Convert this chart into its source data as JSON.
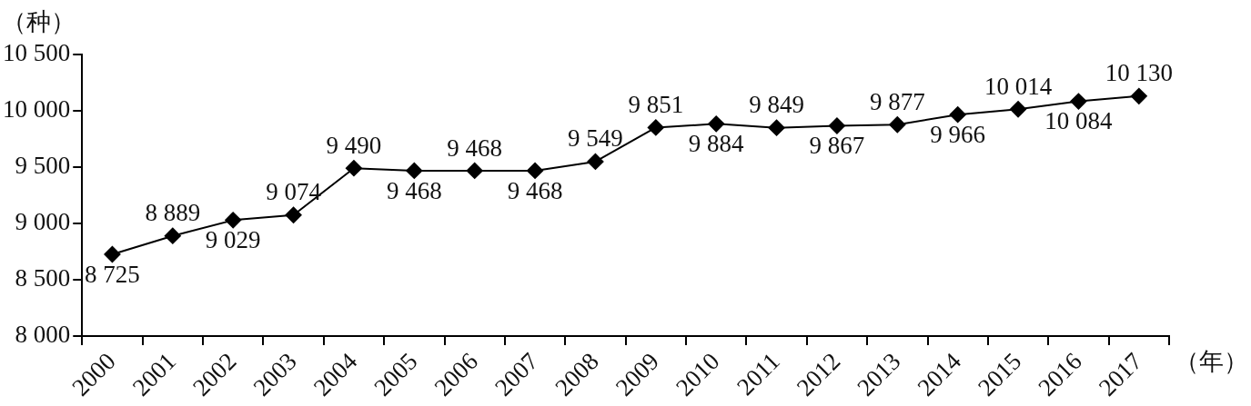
{
  "chart_data": {
    "type": "line",
    "ylabel": "（种）",
    "xlabel": "（年）",
    "categories": [
      "2000",
      "2001",
      "2002",
      "2003",
      "2004",
      "2005",
      "2006",
      "2007",
      "2008",
      "2009",
      "2010",
      "2011",
      "2012",
      "2013",
      "2014",
      "2015",
      "2016",
      "2017"
    ],
    "series": [
      {
        "color": "#000000",
        "values": [
          8725,
          8889,
          9029,
          9074,
          9490,
          9468,
          9468,
          9468,
          9549,
          9851,
          9884,
          9849,
          9867,
          9877,
          9966,
          10014,
          10084,
          10130
        ]
      }
    ],
    "ylim": [
      8000,
      10500
    ],
    "yticks": [
      {
        "value": 8000,
        "label": "8 000"
      },
      {
        "value": 8500,
        "label": "8 500"
      },
      {
        "value": 9000,
        "label": "9 000"
      },
      {
        "value": 9500,
        "label": "9 500"
      },
      {
        "value": 10000,
        "label": "10 000"
      },
      {
        "value": 10500,
        "label": "10 500"
      }
    ],
    "data_labels": true,
    "marker": "diamond",
    "line_style": "solid",
    "grid": false,
    "legend": false
  }
}
